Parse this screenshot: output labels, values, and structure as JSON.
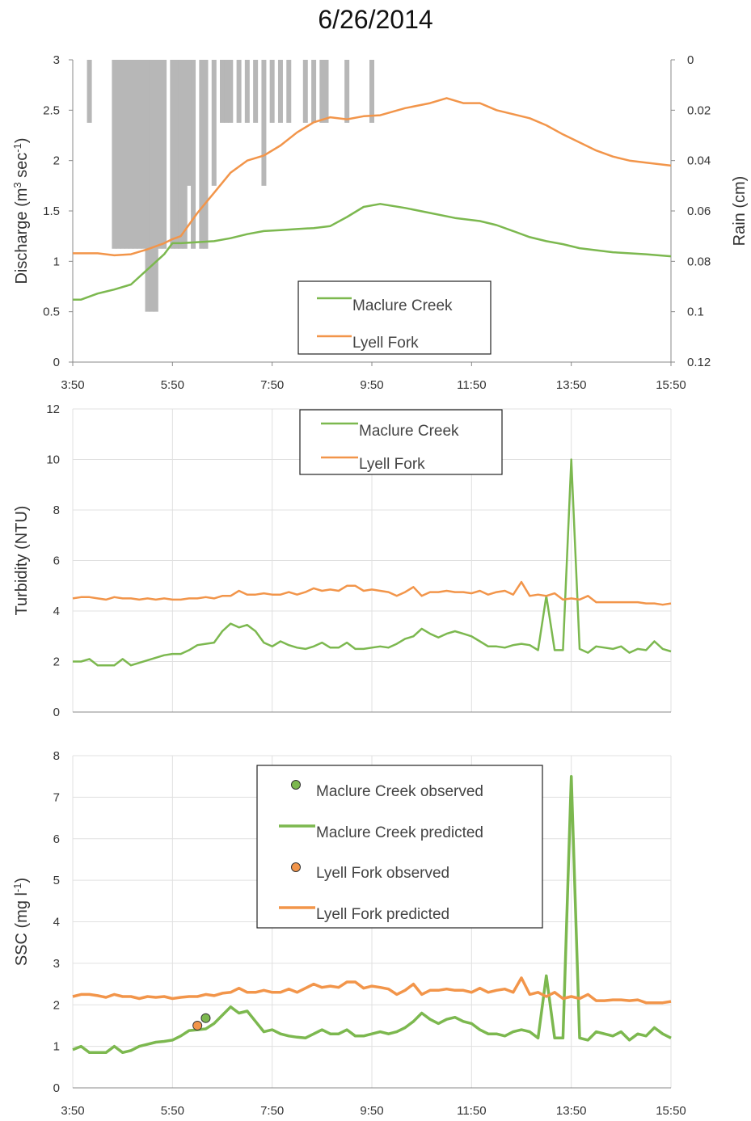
{
  "title": "6/26/2014",
  "colors": {
    "maclure": "#7cb84f",
    "lyell": "#f2954a",
    "rain": "#b7b7b7",
    "grid": "#e0e0e0"
  },
  "x_tick_labels": [
    "3:50",
    "5:50",
    "7:50",
    "9:50",
    "11:50",
    "13:50",
    "15:50"
  ],
  "chart_data": [
    {
      "type": "line",
      "x_unit": "hour",
      "xlim": [
        3.833,
        15.833
      ],
      "ylabel_main": "Discharge (m",
      "ylabel_sup1": "3",
      "ylabel_mid": " sec",
      "ylabel_sup2": "-1",
      "ylabel_end": ")",
      "ylim": [
        0,
        3
      ],
      "y_ticks": [
        0,
        0.5,
        1,
        1.5,
        2,
        2.5,
        3
      ],
      "y2label": "Rain (cm)",
      "y2lim": [
        0,
        0.12
      ],
      "y2_reversed": true,
      "y2_ticks": [
        0,
        0.02,
        0.04,
        0.06,
        0.08,
        0.1,
        0.12
      ],
      "legend": [
        "Maclure Creek",
        "Lyell Fork"
      ],
      "series": [
        {
          "name": "Maclure Creek",
          "x": [
            3.833,
            4,
            4.333,
            4.667,
            5,
            5.333,
            5.667,
            5.833,
            6,
            6.333,
            6.667,
            7,
            7.333,
            7.667,
            8,
            8.333,
            8.667,
            9,
            9.333,
            9.667,
            10,
            10.5,
            11,
            11.5,
            12,
            12.333,
            12.667,
            13,
            13.333,
            13.667,
            14,
            14.333,
            14.667,
            15,
            15.333,
            15.833
          ],
          "y": [
            0.62,
            0.62,
            0.68,
            0.72,
            0.77,
            0.92,
            1.07,
            1.18,
            1.18,
            1.19,
            1.2,
            1.23,
            1.27,
            1.3,
            1.31,
            1.32,
            1.33,
            1.35,
            1.44,
            1.54,
            1.57,
            1.53,
            1.48,
            1.43,
            1.4,
            1.36,
            1.3,
            1.24,
            1.2,
            1.17,
            1.13,
            1.11,
            1.09,
            1.08,
            1.07,
            1.05
          ]
        },
        {
          "name": "Lyell Fork",
          "x": [
            3.833,
            4,
            4.333,
            4.667,
            5,
            5.333,
            5.667,
            5.833,
            6,
            6.333,
            6.5,
            6.667,
            7,
            7.333,
            7.667,
            8,
            8.333,
            8.667,
            9,
            9.333,
            9.667,
            10,
            10.5,
            11,
            11.333,
            11.667,
            12,
            12.333,
            12.667,
            13,
            13.333,
            13.667,
            14,
            14.333,
            14.667,
            15,
            15.333,
            15.833
          ],
          "y": [
            1.08,
            1.08,
            1.08,
            1.06,
            1.07,
            1.12,
            1.18,
            1.22,
            1.25,
            1.48,
            1.58,
            1.68,
            1.88,
            2.0,
            2.05,
            2.15,
            2.28,
            2.38,
            2.43,
            2.41,
            2.44,
            2.45,
            2.52,
            2.57,
            2.62,
            2.57,
            2.57,
            2.5,
            2.46,
            2.42,
            2.35,
            2.26,
            2.18,
            2.1,
            2.04,
            2.0,
            1.98,
            1.95
          ]
        }
      ],
      "rain": {
        "x": [
          4.167,
          4.667,
          4.75,
          4.833,
          4.917,
          5,
          5.083,
          5.167,
          5.25,
          5.333,
          5.417,
          5.5,
          5.583,
          5.667,
          5.833,
          5.917,
          6,
          6.083,
          6.167,
          6.25,
          6.417,
          6.5,
          6.667,
          6.833,
          6.917,
          7,
          7.167,
          7.333,
          7.5,
          7.667,
          7.833,
          8,
          8.167,
          8.5,
          8.667,
          8.833,
          8.917,
          9.333,
          9.833
        ],
        "y": [
          0.025,
          0.075,
          0.075,
          0.075,
          0.075,
          0.075,
          0.075,
          0.075,
          0.075,
          0.1,
          0.1,
          0.1,
          0.075,
          0.075,
          0.075,
          0.075,
          0.075,
          0.075,
          0.05,
          0.075,
          0.075,
          0.075,
          0.05,
          0.025,
          0.025,
          0.025,
          0.025,
          0.025,
          0.025,
          0.05,
          0.025,
          0.025,
          0.025,
          0.025,
          0.025,
          0.025,
          0.025,
          0.025,
          0.025
        ]
      }
    },
    {
      "type": "line",
      "x_unit": "hour",
      "xlim": [
        3.833,
        15.833
      ],
      "ylabel": "Turbidity (NTU)",
      "ylim": [
        0,
        12
      ],
      "y_ticks": [
        0,
        2,
        4,
        6,
        8,
        10,
        12
      ],
      "legend": [
        "Maclure Creek",
        "Lyell Fork"
      ],
      "series": [
        {
          "name": "Maclure Creek",
          "x": [
            3.833,
            4,
            4.167,
            4.333,
            4.5,
            4.667,
            4.833,
            5,
            5.167,
            5.333,
            5.5,
            5.667,
            5.833,
            6,
            6.167,
            6.333,
            6.5,
            6.667,
            6.833,
            7,
            7.167,
            7.333,
            7.5,
            7.667,
            7.833,
            8,
            8.167,
            8.333,
            8.5,
            8.667,
            8.833,
            9,
            9.167,
            9.333,
            9.5,
            9.667,
            9.833,
            10,
            10.167,
            10.333,
            10.5,
            10.667,
            10.833,
            11,
            11.167,
            11.333,
            11.5,
            11.667,
            11.833,
            12,
            12.167,
            12.333,
            12.5,
            12.667,
            12.833,
            13,
            13.167,
            13.333,
            13.5,
            13.667,
            13.833,
            14,
            14.167,
            14.333,
            14.5,
            14.667,
            14.833,
            15,
            15.167,
            15.333,
            15.5,
            15.667,
            15.833
          ],
          "y": [
            2.0,
            2.0,
            2.1,
            1.85,
            1.85,
            1.85,
            2.1,
            1.85,
            1.95,
            2.05,
            2.15,
            2.25,
            2.3,
            2.3,
            2.45,
            2.65,
            2.7,
            2.75,
            3.2,
            3.5,
            3.35,
            3.45,
            3.2,
            2.75,
            2.6,
            2.8,
            2.65,
            2.55,
            2.5,
            2.6,
            2.75,
            2.55,
            2.55,
            2.75,
            2.5,
            2.5,
            2.55,
            2.6,
            2.55,
            2.7,
            2.9,
            3.0,
            3.3,
            3.1,
            2.95,
            3.1,
            3.2,
            3.1,
            3.0,
            2.8,
            2.6,
            2.6,
            2.55,
            2.65,
            2.7,
            2.65,
            2.45,
            4.6,
            2.45,
            2.45,
            10.0,
            2.5,
            2.35,
            2.6,
            2.55,
            2.5,
            2.6,
            2.35,
            2.5,
            2.45,
            2.8,
            2.5,
            2.4
          ]
        },
        {
          "name": "Lyell Fork",
          "x": [
            3.833,
            4,
            4.167,
            4.333,
            4.5,
            4.667,
            4.833,
            5,
            5.167,
            5.333,
            5.5,
            5.667,
            5.833,
            6,
            6.167,
            6.333,
            6.5,
            6.667,
            6.833,
            7,
            7.167,
            7.333,
            7.5,
            7.667,
            7.833,
            8,
            8.167,
            8.333,
            8.5,
            8.667,
            8.833,
            9,
            9.167,
            9.333,
            9.5,
            9.667,
            9.833,
            10,
            10.167,
            10.333,
            10.5,
            10.667,
            10.833,
            11,
            11.167,
            11.333,
            11.5,
            11.667,
            11.833,
            12,
            12.167,
            12.333,
            12.5,
            12.667,
            12.833,
            13,
            13.167,
            13.333,
            13.5,
            13.667,
            13.833,
            14,
            14.167,
            14.333,
            14.5,
            14.667,
            14.833,
            15,
            15.167,
            15.333,
            15.5,
            15.667,
            15.833
          ],
          "y": [
            4.5,
            4.55,
            4.55,
            4.5,
            4.45,
            4.55,
            4.5,
            4.5,
            4.45,
            4.5,
            4.45,
            4.5,
            4.45,
            4.45,
            4.5,
            4.5,
            4.55,
            4.5,
            4.6,
            4.6,
            4.8,
            4.65,
            4.65,
            4.7,
            4.65,
            4.65,
            4.75,
            4.65,
            4.75,
            4.9,
            4.8,
            4.85,
            4.8,
            5.0,
            5.0,
            4.8,
            4.85,
            4.8,
            4.75,
            4.6,
            4.75,
            4.95,
            4.6,
            4.75,
            4.75,
            4.8,
            4.75,
            4.75,
            4.7,
            4.8,
            4.65,
            4.75,
            4.8,
            4.65,
            5.15,
            4.6,
            4.65,
            4.6,
            4.7,
            4.45,
            4.5,
            4.45,
            4.6,
            4.35,
            4.35,
            4.35,
            4.35,
            4.35,
            4.35,
            4.3,
            4.3,
            4.25,
            4.3
          ]
        }
      ]
    },
    {
      "type": "line",
      "x_unit": "hour",
      "xlim": [
        3.833,
        15.833
      ],
      "ylabel_main": "SSC (mg l",
      "ylabel_sup": "-1",
      "ylabel_end": ")",
      "ylim": [
        0,
        8
      ],
      "y_ticks": [
        0,
        1,
        2,
        3,
        4,
        5,
        6,
        7,
        8
      ],
      "legend": [
        "Maclure Creek observed",
        "Maclure Creek predicted",
        "Lyell Fork observed",
        "Lyell Fork predicted"
      ],
      "series": [
        {
          "name": "Maclure Creek predicted",
          "x": [
            3.833,
            4,
            4.167,
            4.333,
            4.5,
            4.667,
            4.833,
            5,
            5.167,
            5.333,
            5.5,
            5.667,
            5.833,
            6,
            6.167,
            6.333,
            6.5,
            6.667,
            6.833,
            7,
            7.167,
            7.333,
            7.5,
            7.667,
            7.833,
            8,
            8.167,
            8.333,
            8.5,
            8.667,
            8.833,
            9,
            9.167,
            9.333,
            9.5,
            9.667,
            9.833,
            10,
            10.167,
            10.333,
            10.5,
            10.667,
            10.833,
            11,
            11.167,
            11.333,
            11.5,
            11.667,
            11.833,
            12,
            12.167,
            12.333,
            12.5,
            12.667,
            12.833,
            13,
            13.167,
            13.333,
            13.5,
            13.667,
            13.833,
            14,
            14.167,
            14.333,
            14.5,
            14.667,
            14.833,
            15,
            15.167,
            15.333,
            15.5,
            15.667,
            15.833
          ],
          "y": [
            0.92,
            1.0,
            0.85,
            0.85,
            0.85,
            1.0,
            0.85,
            0.9,
            1.0,
            1.05,
            1.1,
            1.12,
            1.15,
            1.25,
            1.38,
            1.4,
            1.42,
            1.55,
            1.75,
            1.95,
            1.8,
            1.85,
            1.6,
            1.35,
            1.4,
            1.3,
            1.25,
            1.22,
            1.2,
            1.3,
            1.4,
            1.3,
            1.3,
            1.4,
            1.25,
            1.25,
            1.3,
            1.35,
            1.3,
            1.35,
            1.45,
            1.6,
            1.8,
            1.65,
            1.55,
            1.65,
            1.7,
            1.6,
            1.55,
            1.4,
            1.3,
            1.3,
            1.25,
            1.35,
            1.4,
            1.35,
            1.2,
            2.7,
            1.2,
            1.2,
            7.5,
            1.2,
            1.15,
            1.35,
            1.3,
            1.25,
            1.35,
            1.15,
            1.3,
            1.25,
            1.45,
            1.3,
            1.2
          ]
        },
        {
          "name": "Lyell Fork predicted",
          "x": [
            3.833,
            4,
            4.167,
            4.333,
            4.5,
            4.667,
            4.833,
            5,
            5.167,
            5.333,
            5.5,
            5.667,
            5.833,
            6,
            6.167,
            6.333,
            6.5,
            6.667,
            6.833,
            7,
            7.167,
            7.333,
            7.5,
            7.667,
            7.833,
            8,
            8.167,
            8.333,
            8.5,
            8.667,
            8.833,
            9,
            9.167,
            9.333,
            9.5,
            9.667,
            9.833,
            10,
            10.167,
            10.333,
            10.5,
            10.667,
            10.833,
            11,
            11.167,
            11.333,
            11.5,
            11.667,
            11.833,
            12,
            12.167,
            12.333,
            12.5,
            12.667,
            12.833,
            13,
            13.167,
            13.333,
            13.5,
            13.667,
            13.833,
            14,
            14.167,
            14.333,
            14.5,
            14.667,
            14.833,
            15,
            15.167,
            15.333,
            15.5,
            15.667,
            15.833
          ],
          "y": [
            2.2,
            2.25,
            2.25,
            2.22,
            2.18,
            2.25,
            2.2,
            2.2,
            2.15,
            2.2,
            2.18,
            2.2,
            2.15,
            2.18,
            2.2,
            2.2,
            2.25,
            2.22,
            2.28,
            2.3,
            2.4,
            2.3,
            2.3,
            2.35,
            2.3,
            2.3,
            2.38,
            2.3,
            2.4,
            2.5,
            2.42,
            2.45,
            2.42,
            2.55,
            2.55,
            2.4,
            2.45,
            2.42,
            2.38,
            2.25,
            2.35,
            2.5,
            2.25,
            2.35,
            2.35,
            2.38,
            2.35,
            2.35,
            2.3,
            2.4,
            2.3,
            2.35,
            2.38,
            2.3,
            2.65,
            2.25,
            2.3,
            2.2,
            2.3,
            2.15,
            2.2,
            2.15,
            2.25,
            2.1,
            2.1,
            2.12,
            2.12,
            2.1,
            2.12,
            2.05,
            2.05,
            2.05,
            2.08
          ]
        }
      ],
      "observed": [
        {
          "name": "Maclure Creek observed",
          "x": [
            6.5
          ],
          "y": [
            1.68
          ]
        },
        {
          "name": "Lyell Fork observed",
          "x": [
            6.333
          ],
          "y": [
            1.5
          ]
        }
      ]
    }
  ]
}
